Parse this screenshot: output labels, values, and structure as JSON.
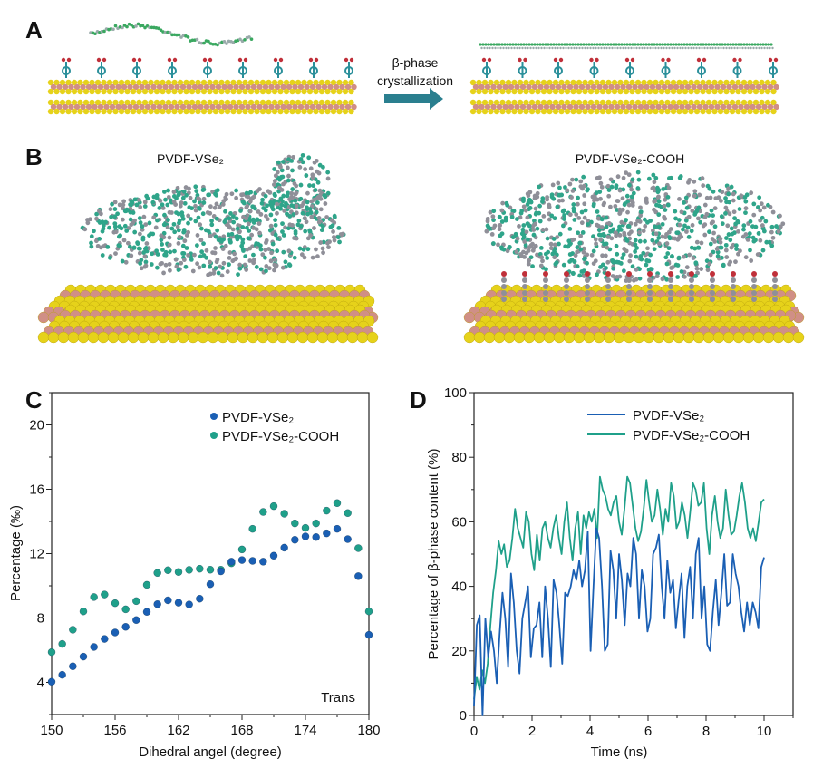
{
  "panels": {
    "a": "A",
    "b": "B",
    "c": "C",
    "d": "D"
  },
  "panel_a": {
    "arrow_line1": "β-phase",
    "arrow_line2": "crystallization"
  },
  "panel_b": {
    "left_caption": "PVDF-VSe₂",
    "right_caption": "PVDF-VSe₂-COOH"
  },
  "colors": {
    "blue": "#1a5fb4",
    "teal": "#1fa08a",
    "se": "#e6d21a",
    "v": "#d08f86",
    "arrow": "#2a7f8f"
  },
  "chart_data": [
    {
      "type": "scatter",
      "panel": "C",
      "xlabel": "Dihedral angel (degree)",
      "ylabel": "Percentage (‰)",
      "xlim": [
        150,
        180
      ],
      "ylim": [
        2,
        22
      ],
      "xticks": [
        150,
        156,
        162,
        168,
        174,
        180
      ],
      "yticks": [
        4,
        8,
        12,
        16,
        20
      ],
      "annotation": "Trans",
      "legend_position": "top-right",
      "x": [
        150,
        151,
        152,
        153,
        154,
        155,
        156,
        157,
        158,
        159,
        160,
        161,
        162,
        163,
        164,
        165,
        166,
        167,
        168,
        169,
        170,
        171,
        172,
        173,
        174,
        175,
        176,
        177,
        178,
        179,
        180
      ],
      "series": [
        {
          "name": "PVDF-VSe₂",
          "color": "#1a5fb4",
          "values": [
            4.04,
            4.47,
            5.0,
            5.6,
            6.2,
            6.7,
            7.1,
            7.45,
            7.87,
            8.38,
            8.86,
            9.1,
            8.95,
            8.84,
            9.2,
            10.1,
            10.9,
            11.5,
            11.6,
            11.55,
            11.5,
            11.87,
            12.37,
            12.86,
            13.07,
            13.03,
            13.26,
            13.54,
            12.9,
            10.6,
            6.95
          ]
        },
        {
          "name": "PVDF-VSe₂-COOH",
          "color": "#1fa08a",
          "values": [
            5.88,
            6.39,
            7.27,
            8.41,
            9.3,
            9.46,
            8.92,
            8.54,
            9.05,
            10.06,
            10.8,
            10.97,
            10.86,
            10.99,
            11.06,
            11.0,
            11.0,
            11.4,
            12.26,
            13.54,
            14.59,
            14.95,
            14.48,
            13.88,
            13.6,
            13.88,
            14.67,
            15.14,
            14.52,
            12.34,
            8.41
          ]
        }
      ]
    },
    {
      "type": "line",
      "panel": "D",
      "xlabel": "Time (ns)",
      "ylabel": "Percentage of  β-phase content (%)",
      "xlim": [
        0,
        11
      ],
      "ylim": [
        0,
        100
      ],
      "xticks": [
        0,
        2,
        4,
        6,
        8,
        10
      ],
      "yticks": [
        0,
        20,
        40,
        60,
        80,
        100
      ],
      "x_range": [
        0,
        10
      ],
      "legend_position": "top-right",
      "series": [
        {
          "name": "PVDF-VSe₂",
          "color": "#1a5fb4",
          "values": [
            3,
            28,
            31,
            0,
            30,
            18,
            26,
            20,
            10,
            25,
            38,
            30,
            15,
            44,
            35,
            20,
            13,
            30,
            35,
            40,
            18,
            27,
            28,
            35,
            18,
            40,
            30,
            15,
            42,
            38,
            28,
            16,
            38,
            37,
            40,
            45,
            42,
            48,
            40,
            45,
            57,
            20,
            40,
            58,
            55,
            40,
            20,
            22,
            51,
            45,
            30,
            50,
            42,
            28,
            44,
            40,
            55,
            50,
            30,
            45,
            40,
            26,
            30,
            50,
            52,
            56,
            40,
            30,
            48,
            38,
            42,
            27,
            36,
            44,
            24,
            40,
            46,
            30,
            50,
            55,
            30,
            40,
            22,
            20,
            32,
            42,
            28,
            38,
            50,
            34,
            35,
            50,
            44,
            40,
            32,
            26,
            35,
            28,
            35,
            32,
            27,
            46,
            49
          ]
        },
        {
          "name": "PVDF-VSe₂-COOH",
          "color": "#1fa08a",
          "values": [
            5,
            12,
            8,
            14,
            10,
            16,
            28,
            38,
            45,
            54,
            50,
            53,
            46,
            48,
            55,
            64,
            58,
            55,
            52,
            63,
            60,
            50,
            45,
            56,
            48,
            58,
            60,
            55,
            52,
            58,
            62,
            55,
            50,
            60,
            66,
            55,
            48,
            58,
            63,
            50,
            62,
            58,
            63,
            60,
            64,
            55,
            74,
            70,
            68,
            64,
            62,
            66,
            68,
            60,
            56,
            64,
            74,
            72,
            65,
            58,
            54,
            57,
            64,
            73,
            66,
            60,
            62,
            70,
            64,
            56,
            64,
            60,
            72,
            68,
            58,
            60,
            66,
            62,
            55,
            63,
            72,
            70,
            65,
            66,
            72,
            58,
            50,
            62,
            68,
            60,
            55,
            58,
            70,
            62,
            56,
            57,
            62,
            68,
            72,
            66,
            58,
            55,
            58,
            54,
            60,
            66,
            67
          ]
        }
      ]
    }
  ]
}
